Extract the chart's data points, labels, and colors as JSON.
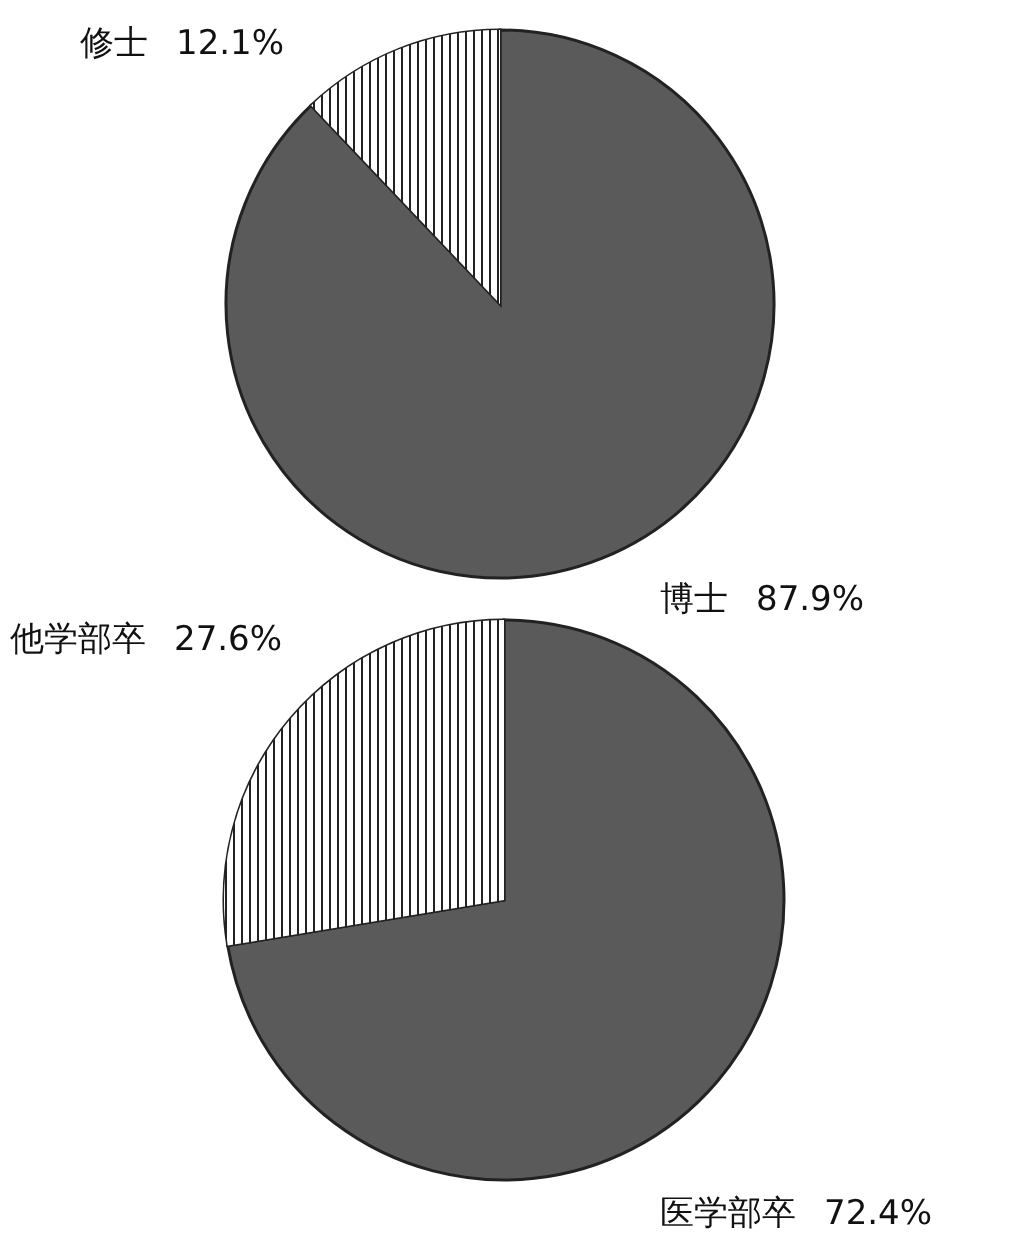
{
  "chart_data": [
    {
      "type": "pie",
      "categories": [
        "博士",
        "修士"
      ],
      "values": [
        87.9,
        12.1
      ],
      "colors": [
        "#5a5a5a",
        "#ffffff"
      ],
      "value_labels": [
        "87.9%",
        "12.1%"
      ]
    },
    {
      "type": "pie",
      "categories": [
        "医学部卒",
        "他学部卒"
      ],
      "values": [
        72.4,
        27.6
      ],
      "colors": [
        "#5a5a5a",
        "#ffffff"
      ],
      "value_labels": [
        "72.4%",
        "27.6%"
      ]
    }
  ]
}
